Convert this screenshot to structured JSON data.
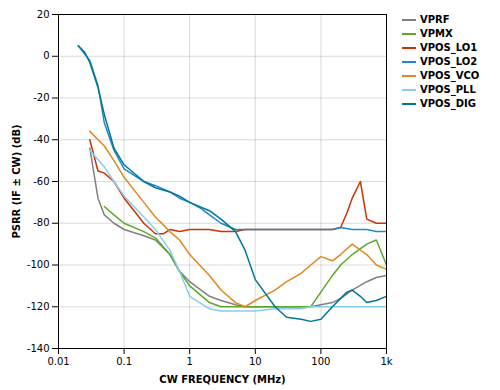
{
  "chart_data": {
    "type": "line",
    "xlabel": "CW FREQUENCY (MHz)",
    "ylabel": "PSRR (IF ± CW) (dB)",
    "log": "x",
    "xlim": [
      0.01,
      1000
    ],
    "xticks": [
      0.01,
      0.1,
      1,
      10,
      100,
      {
        "value": 1000,
        "label": "1k"
      }
    ],
    "ylim": [
      -140,
      20
    ],
    "yticks": [
      20,
      0,
      -20,
      -40,
      -60,
      -80,
      -100,
      -120,
      -140
    ],
    "grid": true,
    "legend": "top-right",
    "series": [
      {
        "name": "VPRF",
        "color": "#808080",
        "x": [
          0.03,
          0.04,
          0.05,
          0.07,
          0.1,
          0.2,
          0.3,
          0.5,
          0.7,
          1.0,
          2.0,
          3.0,
          5.0,
          7.0,
          10,
          20,
          30,
          50,
          70,
          100,
          150,
          200,
          300,
          500,
          700,
          1000
        ],
        "values": [
          -44,
          -68,
          -76,
          -80,
          -83,
          -86,
          -88,
          -95,
          -103,
          -108,
          -115,
          -117,
          -119,
          -120,
          -120,
          -120,
          -120,
          -120,
          -120,
          -119,
          -118,
          -116,
          -112,
          -108,
          -106,
          -105
        ]
      },
      {
        "name": "VPMX",
        "color": "#5aaa28",
        "x": [
          0.05,
          0.07,
          0.1,
          0.2,
          0.3,
          0.5,
          0.7,
          1.0,
          2.0,
          3.0,
          5.0,
          7.0,
          10,
          20,
          30,
          50,
          70,
          100,
          150,
          200,
          300,
          500,
          700,
          1000
        ],
        "values": [
          -72,
          -76,
          -80,
          -84,
          -87,
          -95,
          -103,
          -110,
          -118,
          -120,
          -120,
          -120,
          -120,
          -120,
          -120,
          -120,
          -120,
          -113,
          -105,
          -100,
          -95,
          -90,
          -88,
          -100
        ]
      },
      {
        "name": "VPOS_LO1",
        "color": "#cc3300",
        "x": [
          0.03,
          0.04,
          0.05,
          0.07,
          0.1,
          0.15,
          0.2,
          0.3,
          0.4,
          0.5,
          0.7,
          1.0,
          2.0,
          3.0,
          5.0,
          7.0,
          10,
          20,
          30,
          50,
          70,
          100,
          150,
          200,
          250,
          300,
          400,
          500,
          700,
          1000
        ],
        "values": [
          -40,
          -55,
          -56,
          -60,
          -68,
          -75,
          -80,
          -85,
          -85,
          -83,
          -84,
          -83,
          -83,
          -84,
          -84,
          -83,
          -83,
          -83,
          -83,
          -83,
          -83,
          -83,
          -83,
          -82,
          -75,
          -68,
          -60,
          -78,
          -80,
          -80
        ]
      },
      {
        "name": "VPOS_LO2",
        "color": "#2288cc",
        "x": [
          0.02,
          0.03,
          0.04,
          0.05,
          0.07,
          0.1,
          0.2,
          0.3,
          0.5,
          0.7,
          1.0,
          1.5,
          2.0,
          3.0,
          5.0,
          7.0,
          10,
          20,
          30,
          50,
          70,
          100,
          150,
          200,
          300,
          500,
          700,
          1000
        ],
        "values": [
          5,
          -2,
          -14,
          -32,
          -45,
          -54,
          -60,
          -62,
          -65,
          -68,
          -70,
          -73,
          -76,
          -80,
          -83,
          -83,
          -83,
          -83,
          -83,
          -83,
          -83,
          -83,
          -83,
          -82,
          -83,
          -83,
          -84,
          -84
        ]
      },
      {
        "name": "VPOS_VCO",
        "color": "#e08820",
        "x": [
          0.03,
          0.05,
          0.07,
          0.1,
          0.2,
          0.3,
          0.5,
          0.7,
          1.0,
          2.0,
          3.0,
          5.0,
          7.0,
          10,
          20,
          30,
          50,
          70,
          100,
          150,
          200,
          300,
          500,
          700,
          1000
        ],
        "values": [
          -36,
          -43,
          -50,
          -58,
          -70,
          -77,
          -84,
          -88,
          -95,
          -105,
          -112,
          -118,
          -120,
          -117,
          -112,
          -108,
          -104,
          -100,
          -96,
          -98,
          -95,
          -90,
          -95,
          -100,
          -102
        ]
      },
      {
        "name": "VPOS_PLL",
        "color": "#88ccee",
        "x": [
          0.03,
          0.05,
          0.07,
          0.1,
          0.2,
          0.3,
          0.5,
          0.7,
          1.0,
          2.0,
          3.0,
          5.0,
          7.0,
          10,
          20,
          30,
          50,
          70,
          100,
          150,
          200,
          300,
          500,
          700,
          1000
        ],
        "values": [
          -45,
          -53,
          -60,
          -67,
          -77,
          -83,
          -93,
          -103,
          -115,
          -121,
          -122,
          -122,
          -122,
          -122,
          -121,
          -121,
          -121,
          -120,
          -120,
          -120,
          -120,
          -120,
          -120,
          -120,
          -120
        ]
      },
      {
        "name": "VPOS_DIG",
        "color": "#007799",
        "x": [
          0.02,
          0.025,
          0.03,
          0.04,
          0.05,
          0.07,
          0.1,
          0.2,
          0.3,
          0.5,
          0.7,
          1.0,
          2.0,
          3.0,
          5.0,
          7.0,
          10,
          20,
          30,
          50,
          70,
          100,
          150,
          200,
          250,
          300,
          400,
          500,
          700,
          1000
        ],
        "values": [
          5,
          2,
          -3,
          -15,
          -28,
          -44,
          -52,
          -60,
          -63,
          -65,
          -67,
          -70,
          -74,
          -78,
          -84,
          -93,
          -107,
          -120,
          -125,
          -126,
          -127,
          -126,
          -120,
          -116,
          -113,
          -112,
          -115,
          -118,
          -117,
          -115
        ]
      }
    ]
  }
}
